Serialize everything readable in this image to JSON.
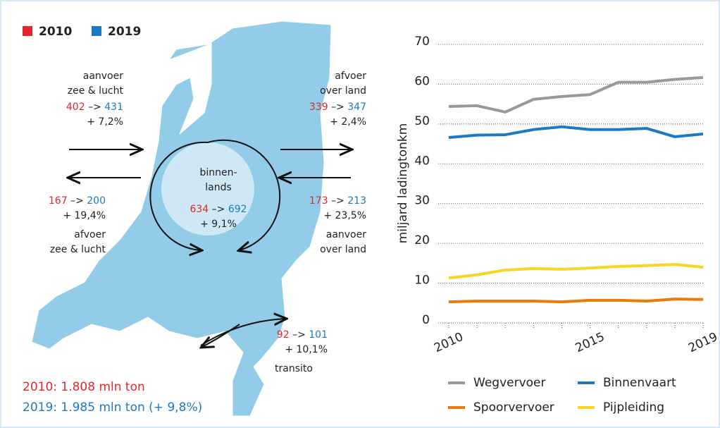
{
  "legend": [
    {
      "label": "2010",
      "color": "#e3262b"
    },
    {
      "label": "2019",
      "color": "#1a7ac4"
    }
  ],
  "arrow": "–>",
  "flows": [
    {
      "label": [
        "aanvoer",
        "zee & lucht"
      ],
      "from": 402,
      "to": 431,
      "change": "+ 7,2%"
    },
    {
      "label": [
        "afvoer",
        "over land"
      ],
      "from": 339,
      "to": 347,
      "change": "+ 2,4%"
    },
    {
      "label": [
        "binnen-",
        "lands"
      ],
      "from": 634,
      "to": 692,
      "change": "+ 9,1%"
    },
    {
      "label": [
        "afvoer",
        "zee & lucht"
      ],
      "from": 167,
      "to": 200,
      "change": "+ 19,4%"
    },
    {
      "label": [
        "aanvoer",
        "over land"
      ],
      "from": 173,
      "to": 213,
      "change": "+ 23,5%"
    },
    {
      "label": [
        "transito"
      ],
      "from": 92,
      "to": 101,
      "change": "+ 10,1%"
    }
  ],
  "totals": [
    "2010: 1.808 mln ton",
    "2019: 1.985 mln ton (+ 9,8%)"
  ],
  "chart_data": {
    "type": "line",
    "ylabel": "miljard ladingtonkm",
    "x": [
      2010,
      2011,
      2012,
      2013,
      2014,
      2015,
      2016,
      2017,
      2018,
      2019
    ],
    "xlim": [
      2010,
      2019
    ],
    "xticks": [
      2010,
      2015,
      2019
    ],
    "ylim": [
      0,
      70
    ],
    "yticks": [
      0,
      10,
      20,
      30,
      40,
      50,
      60,
      70
    ],
    "grid": true,
    "series": [
      {
        "name": "Wegvervoer",
        "color": "#999999",
        "values": [
          54.4,
          54.6,
          53.0,
          56.2,
          56.9,
          57.4,
          60.5,
          60.5,
          61.2,
          61.7
        ]
      },
      {
        "name": "Binnenvaart",
        "color": "#1a7ac4",
        "values": [
          46.6,
          47.2,
          47.3,
          48.6,
          49.3,
          48.6,
          48.6,
          48.9,
          46.8,
          47.5
        ]
      },
      {
        "name": "Spoorvervoer",
        "color": "#ec7a08",
        "values": [
          5.3,
          5.5,
          5.5,
          5.5,
          5.3,
          5.7,
          5.7,
          5.5,
          6.0,
          5.9
        ]
      },
      {
        "name": "Pijpleiding",
        "color": "#f9d423",
        "values": [
          11.3,
          12.1,
          13.3,
          13.7,
          13.5,
          13.8,
          14.2,
          14.4,
          14.7,
          14.0
        ]
      }
    ]
  }
}
